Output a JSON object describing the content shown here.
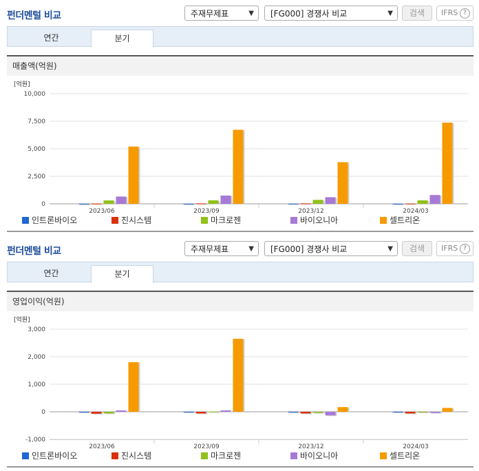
{
  "colors": {
    "c1": "#1f67d2",
    "c2": "#d9310b",
    "c3": "#92c11b",
    "c4": "#a77ad6",
    "c5": "#f59b00"
  },
  "panels": [
    {
      "title": "펀더멘털 비교",
      "select1": "주재무제표",
      "select2": "[FG000] 경쟁사 비교",
      "search_label": "검색",
      "ifrs_label": "IFRS",
      "tabs": [
        "연간",
        "분기"
      ],
      "active_tab": "분기",
      "header": "매출액(억원)"
    },
    {
      "title": "펀더멘털 비교",
      "select1": "주재무제표",
      "select2": "[FG000] 경쟁사 비교",
      "search_label": "검색",
      "ifrs_label": "IFRS",
      "tabs": [
        "연간",
        "분기"
      ],
      "active_tab": "분기",
      "header": "영업이익(억원)"
    }
  ],
  "chart_data": [
    {
      "type": "bar",
      "unit_label": "[억원]",
      "categories": [
        "2023/06",
        "2023/09",
        "2023/12",
        "2024/03"
      ],
      "ylim": [
        0,
        10000
      ],
      "yticks": [
        0,
        2500,
        5000,
        7500,
        10000
      ],
      "ytick_labels": [
        "0",
        "2,500",
        "5,000",
        "7,500",
        "10,000"
      ],
      "series": [
        {
          "name": "인트론바이오",
          "color": "#1f67d2",
          "values": [
            10,
            10,
            20,
            10
          ]
        },
        {
          "name": "진시스템",
          "color": "#d9310b",
          "values": [
            30,
            40,
            40,
            30
          ]
        },
        {
          "name": "마크로젠",
          "color": "#92c11b",
          "values": [
            310,
            320,
            360,
            320
          ]
        },
        {
          "name": "바이오니아",
          "color": "#a77ad6",
          "values": [
            660,
            750,
            600,
            800
          ]
        },
        {
          "name": "셀트리온",
          "color": "#f59b00",
          "values": [
            5200,
            6720,
            3780,
            7370
          ]
        }
      ]
    },
    {
      "type": "bar",
      "unit_label": "[억원]",
      "categories": [
        "2023/06",
        "2023/09",
        "2023/12",
        "2024/03"
      ],
      "ylim": [
        -1000,
        3000
      ],
      "yticks": [
        -1000,
        0,
        1000,
        2000,
        3000
      ],
      "ytick_labels": [
        "-1,000",
        "0",
        "1,000",
        "2,000",
        "3,000"
      ],
      "series": [
        {
          "name": "인트론바이오",
          "color": "#1f67d2",
          "values": [
            -10,
            -10,
            -10,
            -10
          ]
        },
        {
          "name": "진시스템",
          "color": "#d9310b",
          "values": [
            -70,
            -60,
            -60,
            -60
          ]
        },
        {
          "name": "마크로젠",
          "color": "#92c11b",
          "values": [
            -60,
            10,
            -40,
            -10
          ]
        },
        {
          "name": "바이오니아",
          "color": "#a77ad6",
          "values": [
            50,
            50,
            -130,
            -40
          ]
        },
        {
          "name": "셀트리온",
          "color": "#f59b00",
          "values": [
            1800,
            2650,
            170,
            140
          ]
        }
      ]
    }
  ]
}
